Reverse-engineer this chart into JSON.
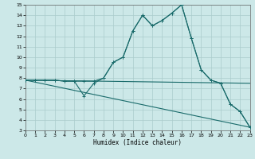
{
  "title": "",
  "xlabel": "Humidex (Indice chaleur)",
  "background_color": "#cce8e8",
  "grid_color": "#aacccc",
  "line_color": "#1a6b6b",
  "x_min": 0,
  "x_max": 23,
  "y_min": 3,
  "y_max": 15,
  "lines": [
    {
      "x": [
        0,
        1,
        2,
        3,
        4,
        5,
        6,
        7,
        8,
        9,
        10,
        11,
        12,
        13,
        14,
        15,
        16,
        17,
        18,
        19,
        20,
        21,
        22,
        23
      ],
      "y": [
        7.8,
        7.8,
        7.8,
        7.8,
        7.7,
        7.7,
        7.7,
        7.7,
        8.0,
        9.5,
        10.0,
        12.5,
        14.0,
        13.0,
        13.5,
        14.2,
        15.0,
        11.8,
        8.8,
        7.8,
        7.5,
        5.5,
        4.8,
        3.3
      ],
      "marker": true
    },
    {
      "x": [
        0,
        1,
        2,
        3,
        4,
        5,
        6,
        7,
        8,
        9,
        10,
        11,
        12,
        13,
        14,
        15,
        16,
        17,
        18,
        19,
        20,
        21,
        22,
        23
      ],
      "y": [
        7.8,
        7.8,
        7.8,
        7.8,
        7.7,
        7.7,
        6.3,
        7.5,
        8.0,
        9.5,
        10.0,
        12.5,
        14.0,
        13.0,
        13.5,
        14.2,
        15.0,
        11.8,
        8.8,
        7.8,
        7.5,
        5.5,
        4.8,
        3.3
      ],
      "marker": true
    },
    {
      "x": [
        0,
        23
      ],
      "y": [
        7.8,
        7.5
      ],
      "marker": false
    },
    {
      "x": [
        0,
        23
      ],
      "y": [
        7.8,
        3.3
      ],
      "marker": false
    }
  ]
}
